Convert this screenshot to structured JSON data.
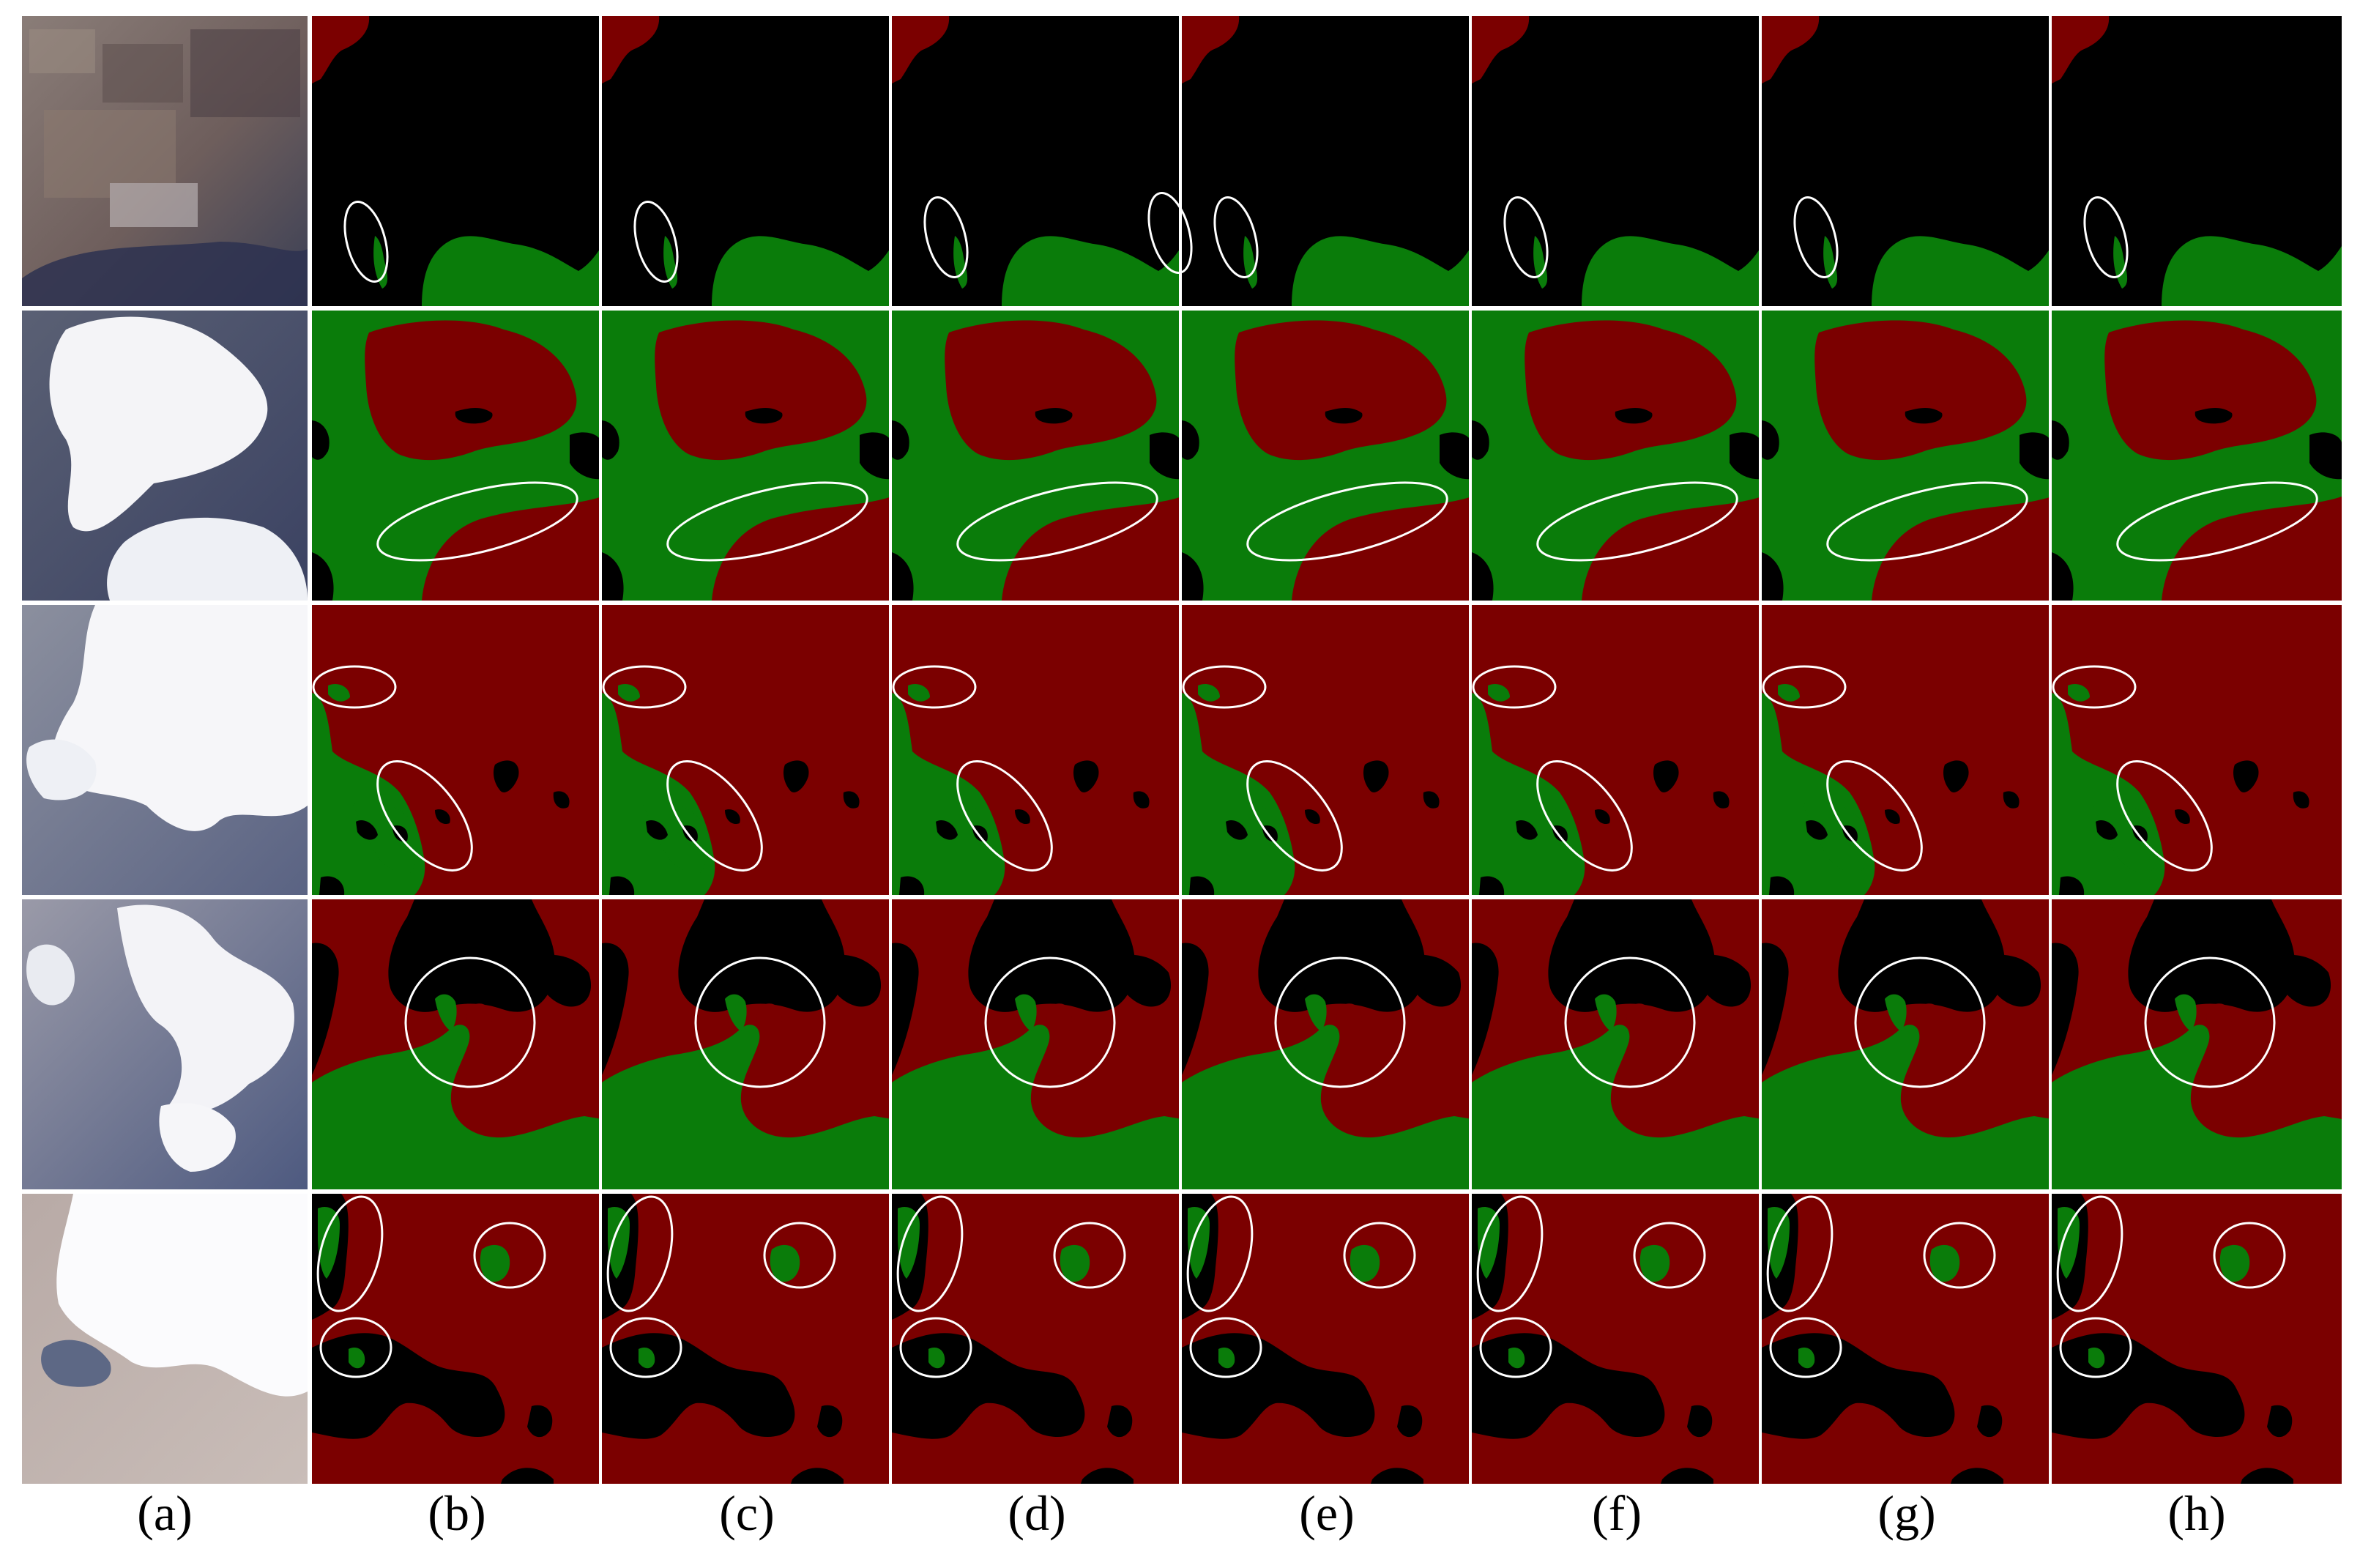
{
  "figure": {
    "column_labels": [
      "(a)",
      "(b)",
      "(c)",
      "(d)",
      "(e)",
      "(f)",
      "(g)",
      "(h)"
    ],
    "rows": 5
  },
  "legend_colors": {
    "background": "#000000",
    "class_red": "#7b0000",
    "class_green": "#0a7c0a",
    "highlight_ellipse": "#ffffff"
  }
}
